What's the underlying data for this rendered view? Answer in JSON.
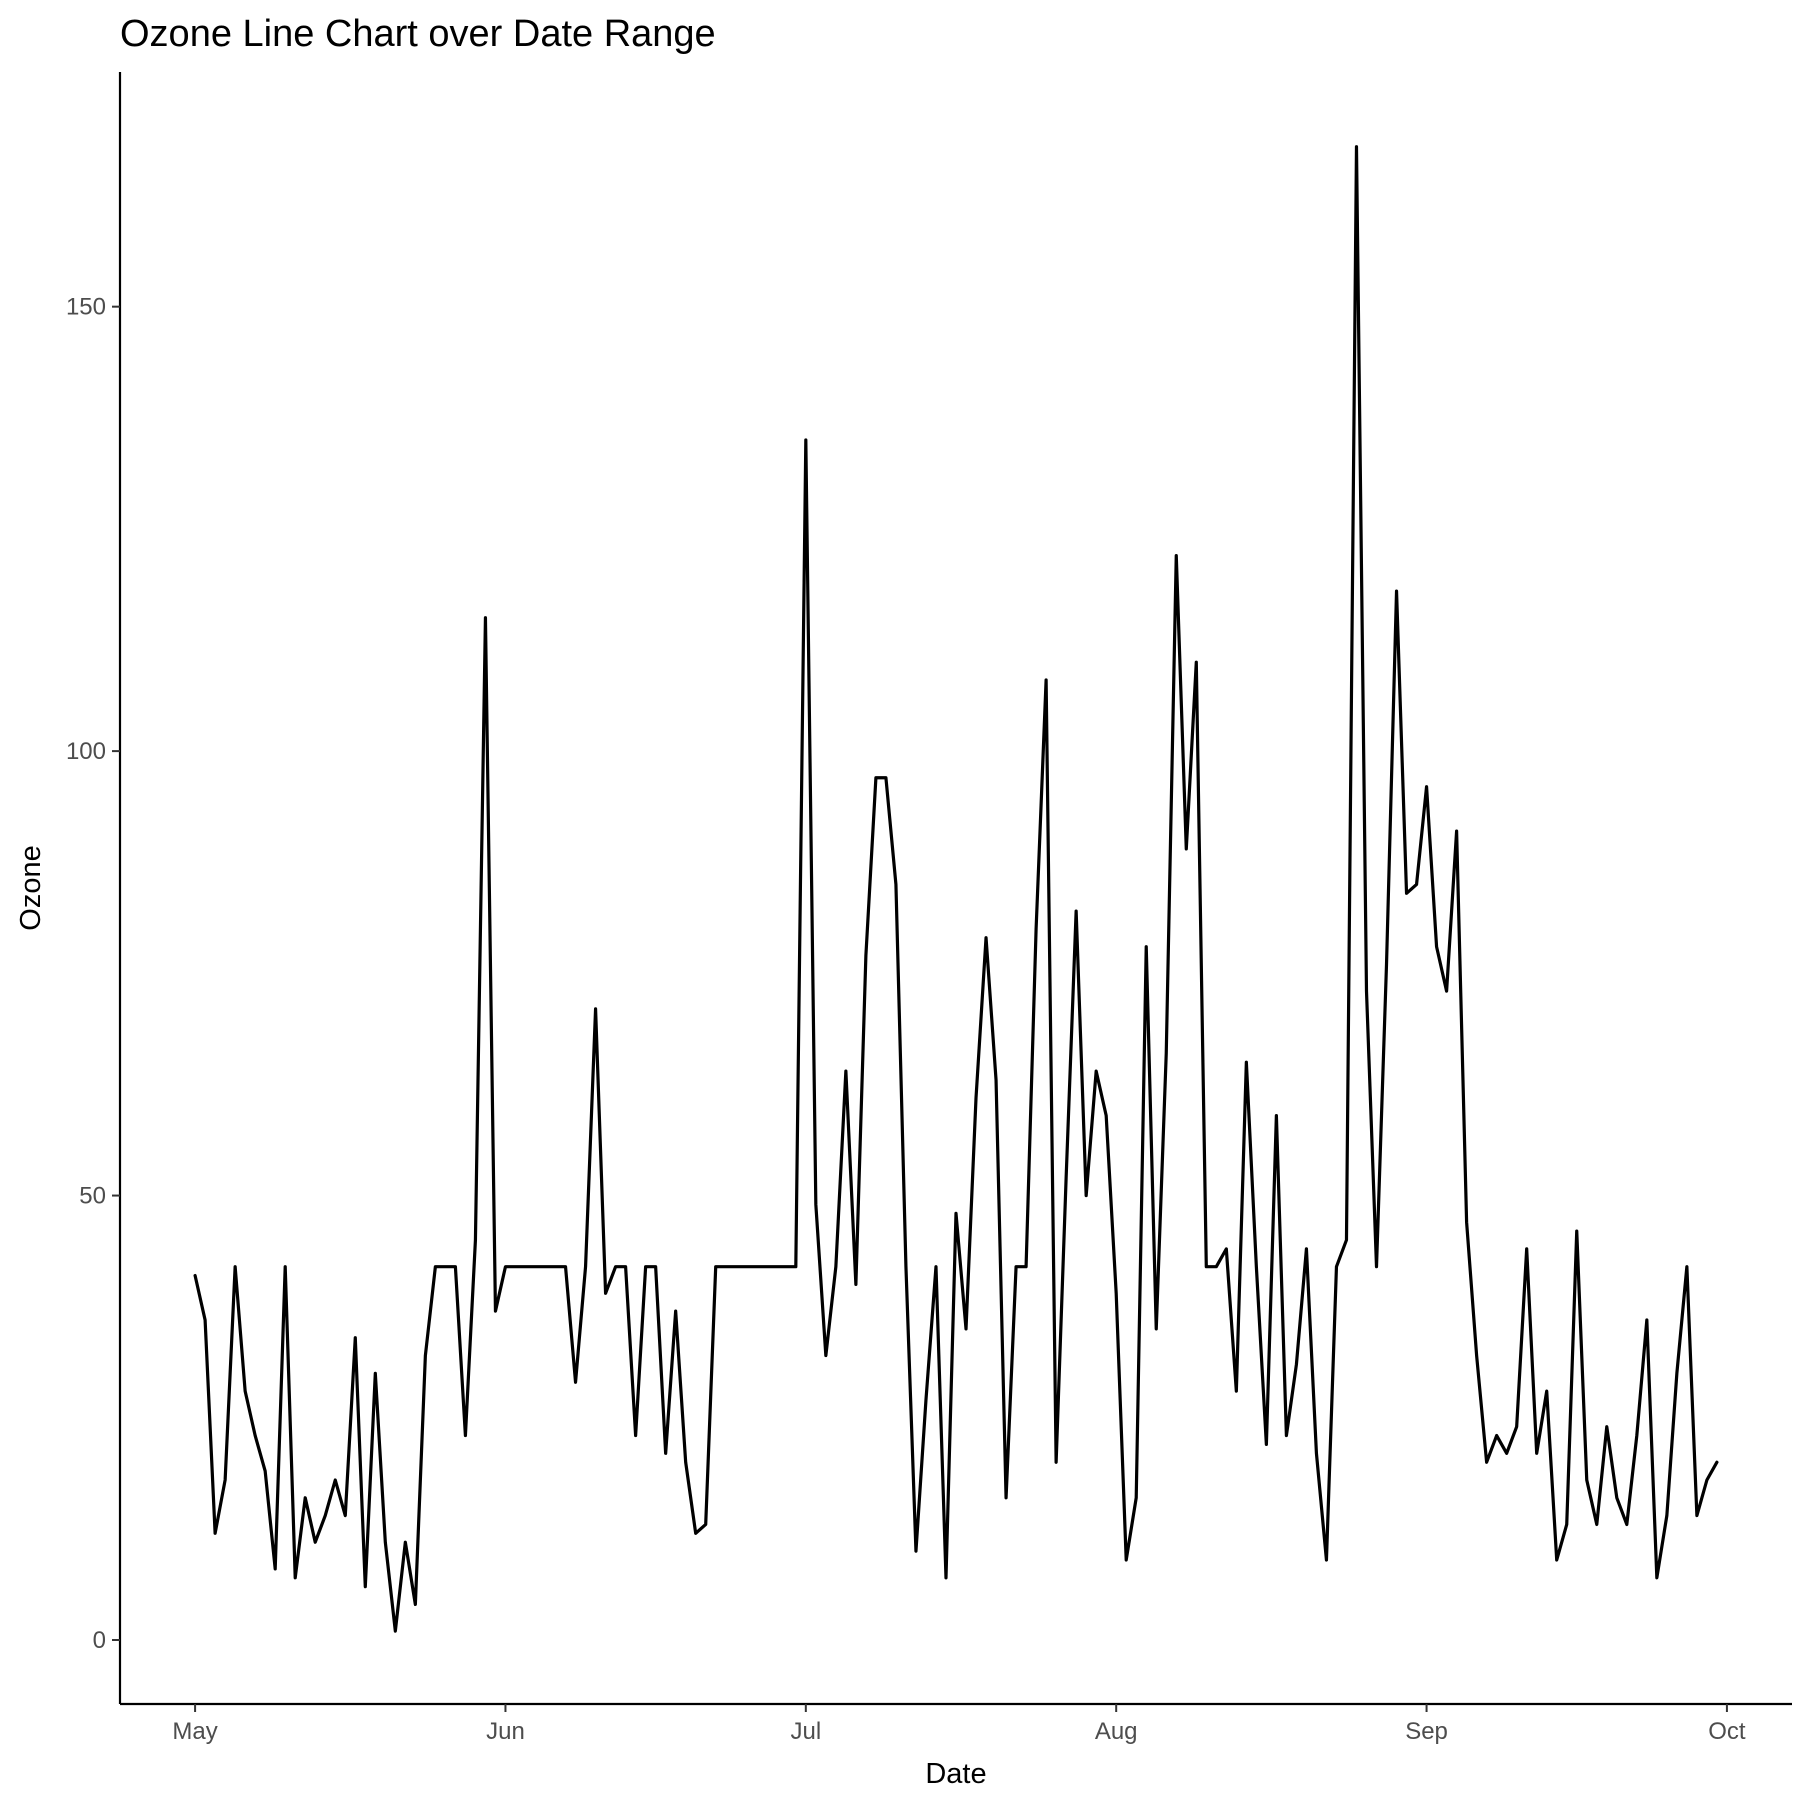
{
  "chart_data": {
    "type": "line",
    "title": "Ozone Line Chart over Date Range",
    "xlabel": "Date",
    "ylabel": "Ozone",
    "x_start_date": "1973-05-01",
    "x_tick_labels": [
      "May",
      "Jun",
      "Jul",
      "Aug",
      "Sep",
      "Oct"
    ],
    "x_tick_day_offsets": [
      0,
      31,
      61,
      92,
      123,
      153
    ],
    "xlim_day_offsets": [
      -7.5,
      159.5
    ],
    "y_ticks": [
      0,
      50,
      100,
      150
    ],
    "y_tick_labels": [
      "0",
      "50",
      "100",
      "150"
    ],
    "ylim": [
      -7.2,
      176.4
    ],
    "grid": false,
    "line_color": "#000000",
    "series": [
      {
        "name": "Ozone",
        "values": [
          41,
          36,
          12,
          18,
          42,
          28,
          23,
          19,
          8,
          42,
          7,
          16,
          11,
          14,
          18,
          14,
          34,
          6,
          30,
          11,
          1,
          11,
          4,
          32,
          42,
          42,
          42,
          23,
          45,
          115,
          37,
          42,
          42,
          42,
          42,
          42,
          42,
          42,
          29,
          42,
          71,
          39,
          42,
          42,
          23,
          42,
          42,
          21,
          37,
          20,
          12,
          13,
          42,
          42,
          42,
          42,
          42,
          42,
          42,
          42,
          42,
          135,
          49,
          32,
          42,
          64,
          40,
          77,
          97,
          97,
          85,
          42,
          10,
          27,
          42,
          7,
          48,
          35,
          61,
          79,
          63,
          16,
          42,
          42,
          80,
          108,
          20,
          52,
          82,
          50,
          64,
          59,
          39,
          9,
          16,
          78,
          35,
          66,
          122,
          89,
          110,
          42,
          42,
          44,
          28,
          65,
          42,
          22,
          59,
          23,
          31,
          44,
          21,
          9,
          42,
          45,
          168,
          73,
          42,
          76,
          118,
          84,
          85,
          96,
          78,
          73,
          91,
          47,
          32,
          20,
          23,
          21,
          24,
          44,
          21,
          28,
          9,
          13,
          46,
          18,
          13,
          24,
          16,
          13,
          23,
          36,
          7,
          14,
          30,
          42,
          14,
          18,
          20
        ]
      }
    ]
  }
}
